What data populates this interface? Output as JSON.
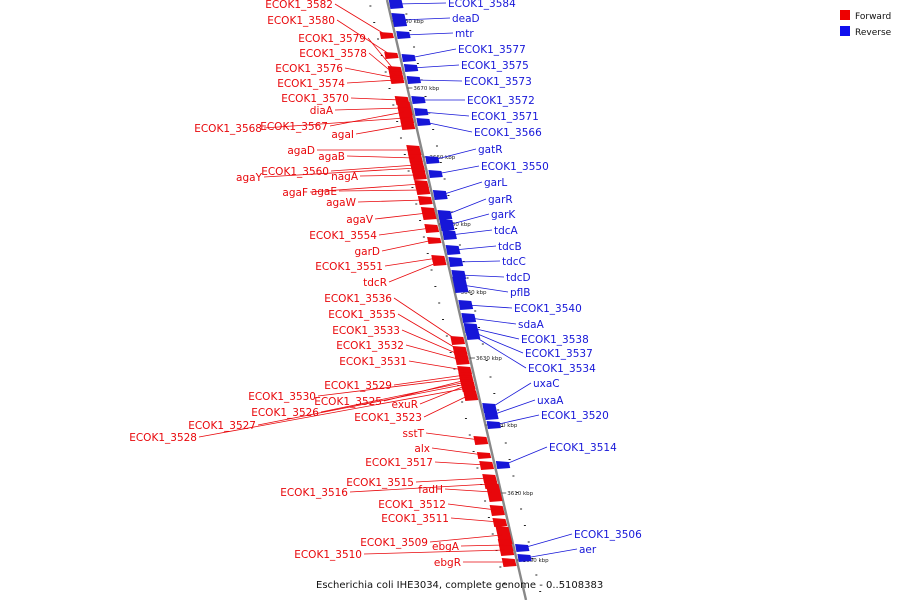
{
  "legend": {
    "forward": {
      "label": "Forward",
      "color": "#ee0000"
    },
    "reverse": {
      "label": "Reverse",
      "color": "#1010ee"
    }
  },
  "caption": "Escherichia coli IHE3034, complete genome - 0..5108383",
  "colors": {
    "forward": "#e8070b",
    "reverse": "#1616d8",
    "axis": "#888888"
  },
  "kbp_marks": [
    "3680 kbp",
    "3670 kbp",
    "3660 kbp",
    "3650 kbp",
    "3640 kbp",
    "3630 kbp",
    "3620 kbp",
    "3610 kbp",
    "3600 kbp"
  ],
  "forward_genes": [
    "ECOK1_3582",
    "ECOK1_3580",
    "ECOK1_3579",
    "ECOK1_3578",
    "ECOK1_3576",
    "ECOK1_3574",
    "ECOK1_3570",
    "diaA",
    "ECOK1_3568",
    "ECOK1_3567",
    "agaI",
    "agaD",
    "agaB",
    "ECOK1_3560",
    "agaY",
    "nagA",
    "agaF",
    "agaE",
    "agaW",
    "agaV",
    "ECOK1_3554",
    "garD",
    "ECOK1_3551",
    "tdcR",
    "ECOK1_3536",
    "ECOK1_3535",
    "ECOK1_3533",
    "ECOK1_3532",
    "ECOK1_3531",
    "ECOK1_3529",
    "ECOK1_3530",
    "ECOK1_3525",
    "exuR",
    "ECOK1_3526",
    "ECOK1_3527",
    "ECOK1_3523",
    "ECOK1_3528",
    "sstT",
    "alx",
    "ECOK1_3517",
    "ECOK1_3515",
    "ECOK1_3516",
    "fadH",
    "ECOK1_3512",
    "ECOK1_3511",
    "ECOK1_3509",
    "ebgA",
    "ECOK1_3510",
    "ebgR"
  ],
  "reverse_genes": [
    "ECOK1_3584",
    "deaD",
    "mtr",
    "ECOK1_3577",
    "ECOK1_3575",
    "ECOK1_3573",
    "ECOK1_3572",
    "ECOK1_3571",
    "ECOK1_3566",
    "gatR",
    "ECOK1_3550",
    "garL",
    "garR",
    "garK",
    "tdcA",
    "tdcB",
    "tdcC",
    "tdcD",
    "pflB",
    "ECOK1_3540",
    "sdaA",
    "ECOK1_3538",
    "ECOK1_3537",
    "ECOK1_3534",
    "uxaC",
    "uxaA",
    "ECOK1_3520",
    "ECOK1_3514",
    "ECOK1_3506",
    "aer"
  ]
}
